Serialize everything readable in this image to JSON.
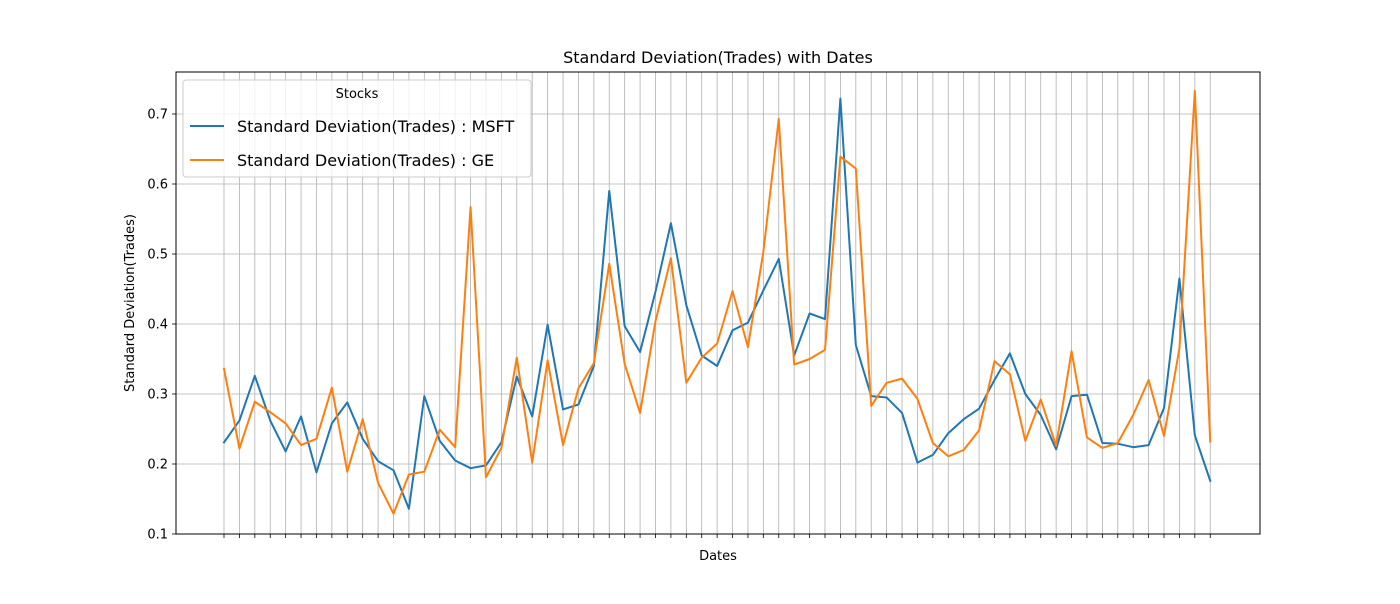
{
  "chart_data": {
    "type": "line",
    "title": "Standard Deviation(Trades) with Dates",
    "xlabel": "Dates",
    "ylabel": "Standard Deviation(Trades)",
    "ylim": [
      0.1,
      0.76
    ],
    "yticks": [
      0.1,
      0.2,
      0.3,
      0.4,
      0.5,
      0.6,
      0.7
    ],
    "ytick_labels": [
      "0.1",
      "0.2",
      "0.3",
      "0.4",
      "0.5",
      "0.6",
      "0.7"
    ],
    "x_count": 65,
    "grid": true,
    "legend": {
      "title": "Stocks",
      "placement": "top-left"
    },
    "series": [
      {
        "name": "Standard Deviation(Trades) : MSFT",
        "color": "#1f77b4",
        "values": [
          0.231,
          0.262,
          0.326,
          0.262,
          0.218,
          0.268,
          0.188,
          0.258,
          0.288,
          0.236,
          0.204,
          0.191,
          0.136,
          0.297,
          0.233,
          0.205,
          0.194,
          0.198,
          0.231,
          0.325,
          0.268,
          0.399,
          0.278,
          0.285,
          0.34,
          0.59,
          0.397,
          0.36,
          0.446,
          0.544,
          0.427,
          0.355,
          0.34,
          0.391,
          0.402,
          0.448,
          0.493,
          0.355,
          0.415,
          0.407,
          0.722,
          0.37,
          0.297,
          0.295,
          0.273,
          0.202,
          0.213,
          0.244,
          0.264,
          0.279,
          0.32,
          0.358,
          0.3,
          0.27,
          0.221,
          0.297,
          0.299,
          0.23,
          0.229,
          0.224,
          0.227,
          0.28,
          0.465,
          0.241,
          0.176
        ]
      },
      {
        "name": "Standard Deviation(Trades) : GE",
        "color": "#ff7f0e",
        "values": [
          0.336,
          0.222,
          0.289,
          0.274,
          0.258,
          0.227,
          0.236,
          0.309,
          0.189,
          0.264,
          0.173,
          0.129,
          0.185,
          0.189,
          0.249,
          0.224,
          0.567,
          0.181,
          0.223,
          0.352,
          0.202,
          0.348,
          0.227,
          0.308,
          0.344,
          0.486,
          0.343,
          0.273,
          0.404,
          0.494,
          0.316,
          0.352,
          0.372,
          0.447,
          0.367,
          0.503,
          0.693,
          0.342,
          0.35,
          0.363,
          0.639,
          0.622,
          0.283,
          0.316,
          0.322,
          0.293,
          0.23,
          0.211,
          0.22,
          0.248,
          0.347,
          0.328,
          0.233,
          0.292,
          0.226,
          0.361,
          0.238,
          0.223,
          0.23,
          0.27,
          0.32,
          0.24,
          0.365,
          0.733,
          0.232
        ]
      }
    ]
  }
}
